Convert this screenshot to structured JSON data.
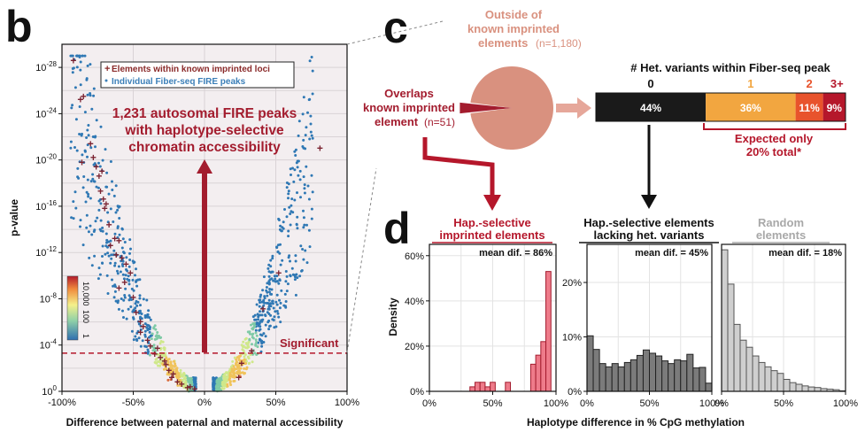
{
  "panel_letters": {
    "b": "b",
    "c": "c",
    "d": "d"
  },
  "colors": {
    "dark_red": "#a31c2e",
    "salmon": "#d9917f",
    "black": "#1a1a1a",
    "orange": "#f2a640",
    "red_orange": "#e8532c",
    "crimson": "#b5172b",
    "pink": "#ee7b8a",
    "grey": "#7b7b7b",
    "light_grey": "#cfcfcf",
    "bg": "#f3eef0"
  },
  "volcano": {
    "legend": {
      "imprinted": "Elements within known imprinted loci",
      "fire": "Individual Fiber-seq FIRE peaks"
    },
    "annotation_lines": [
      "1,231 autosomal FIRE peaks",
      "with haplotype-selective",
      "chromatin accessibility"
    ],
    "significant_label": "Significant",
    "colorbar_labels": [
      "10,000",
      "100",
      "1"
    ],
    "y_base": "10",
    "y_exponents": [
      "0",
      "-4",
      "-8",
      "-12",
      "-16",
      "-20",
      "-24",
      "-28"
    ]
  },
  "pie_labels": {
    "outside": [
      "Outside of",
      "known imprinted"
    ],
    "outside_last": "elements",
    "outside_n": "(n=1,180)",
    "overlaps": [
      "Overlaps",
      "known imprinted"
    ],
    "overlaps_last": "element",
    "overlaps_n": "(n=51)"
  },
  "stacked_bar": {
    "title": "# Het. variants within Fiber-seq peak",
    "expected_lines": [
      "Expected only",
      "20% total*"
    ]
  },
  "hist_titles": {
    "imprinted": [
      "Hap.-selective",
      "imprinted elements"
    ],
    "lacking": [
      "Hap.-selective elements",
      "lacking het. variants"
    ],
    "random": [
      "Random",
      "elements"
    ]
  },
  "chart_data": [
    {
      "type": "scatter",
      "id": "volcano",
      "title": "",
      "xlabel": "Difference between paternal and maternal accessibility",
      "ylabel": "p-value",
      "xlim": [
        -100,
        100
      ],
      "ylim_log10_neg": [
        0,
        30
      ],
      "x_ticks": [
        "-100%",
        "-50%",
        "0%",
        "50%",
        "100%"
      ],
      "x_tick_values": [
        -100,
        -50,
        0,
        50,
        100
      ],
      "y_tick_exponents": [
        0,
        4,
        8,
        12,
        16,
        20,
        24,
        28
      ],
      "significance_threshold_neglog10": 3.3,
      "series": [
        {
          "name": "Elements within known imprinted loci",
          "marker": "+",
          "points": [
            [
              -92,
              28.6
            ],
            [
              -87,
              25.2
            ],
            [
              -85,
              25.5
            ],
            [
              -80,
              21.4
            ],
            [
              -78,
              20.2
            ],
            [
              -74,
              18.6
            ],
            [
              -72,
              19.0
            ],
            [
              -73,
              17.3
            ],
            [
              -70,
              15.8
            ],
            [
              -69,
              16.2
            ],
            [
              -67,
              14.4
            ],
            [
              -63,
              13.2
            ],
            [
              -60,
              13.0
            ],
            [
              -58,
              11.5
            ],
            [
              -55,
              11.0
            ],
            [
              -52,
              10.2
            ],
            [
              -60,
              8.9
            ],
            [
              -50,
              8.1
            ],
            [
              -45,
              6.0
            ],
            [
              -43,
              5.6
            ],
            [
              -38,
              3.9
            ],
            [
              -35,
              3.2
            ],
            [
              -33,
              3.7
            ],
            [
              -31,
              2.9
            ],
            [
              -27,
              2.3
            ],
            [
              -25,
              1.8
            ],
            [
              -23,
              1.2
            ],
            [
              -19,
              0.8
            ],
            [
              -16,
              0.6
            ],
            [
              -12,
              0.3
            ],
            [
              -7,
              0.2
            ],
            [
              -10,
              0.4
            ],
            [
              -22,
              1.5
            ],
            [
              -28,
              2.6
            ],
            [
              -40,
              4.4
            ],
            [
              -48,
              6.8
            ],
            [
              -56,
              9.4
            ],
            [
              -66,
              12.6
            ],
            [
              -71,
              16.6
            ],
            [
              -76,
              19.4
            ],
            [
              -86,
              19.8
            ],
            [
              -62,
              11.8
            ],
            [
              -45,
              5.1
            ],
            [
              81,
              21.0
            ],
            [
              26,
              2.4
            ],
            [
              33,
              3.5
            ],
            [
              24,
              1.2
            ],
            [
              41,
              7.1
            ],
            [
              52,
              10.2
            ]
          ]
        },
        {
          "name": "Individual Fiber-seq FIRE peaks",
          "marker": "dot",
          "generated_points": 1180,
          "distribution": "V-shaped around 0; density highest at |x| 15-40, low p-values"
        }
      ]
    },
    {
      "type": "pie",
      "id": "pie",
      "labels": [
        "Outside of known imprinted elements",
        "Overlaps known imprinted element"
      ],
      "values": [
        1180,
        51
      ]
    },
    {
      "type": "bar",
      "id": "stacked_bar",
      "title": "# Het. variants within Fiber-seq peak",
      "categories": [
        "0",
        "1",
        "2",
        "3+"
      ],
      "values": [
        44,
        36,
        11,
        9
      ],
      "value_labels": [
        "44%",
        "36%",
        "11%",
        "9%"
      ]
    },
    {
      "type": "bar",
      "id": "hist_imprinted",
      "title": "Hap.-selective imprinted elements",
      "annotation": "mean dif. = 86%",
      "xlabel": "Haplotype difference in % CpG methylation",
      "ylabel": "Density",
      "xlim": [
        0,
        100
      ],
      "ylim": [
        0,
        65
      ],
      "x_ticks": [
        "0%",
        "50%",
        "100%"
      ],
      "y_ticks": [
        "0%",
        "20%",
        "40%",
        "60%"
      ],
      "y_tick_values": [
        0,
        20,
        40,
        60
      ],
      "bin_width": 4,
      "bin_starts": [
        32,
        36,
        40,
        44,
        48,
        60,
        80,
        84,
        88,
        92
      ],
      "values": [
        2,
        4,
        4,
        2,
        4,
        4,
        12,
        16,
        22,
        53
      ]
    },
    {
      "type": "bar",
      "id": "hist_lacking",
      "title": "Hap.-selective elements lacking het. variants",
      "annotation": "mean dif. = 45%",
      "xlim": [
        0,
        100
      ],
      "ylim": [
        0,
        27
      ],
      "x_ticks": [
        "0%",
        "50%",
        "100%"
      ],
      "y_ticks": [
        "0%",
        "10%",
        "20%"
      ],
      "y_tick_values": [
        0,
        10,
        20
      ],
      "bin_width": 5,
      "bin_starts": [
        0,
        5,
        10,
        15,
        20,
        25,
        30,
        35,
        40,
        45,
        50,
        55,
        60,
        65,
        70,
        75,
        80,
        85,
        90,
        95
      ],
      "values": [
        10.2,
        7.7,
        5.1,
        4.5,
        5.1,
        4.5,
        5.3,
        5.8,
        6.6,
        7.6,
        7.0,
        6.5,
        5.6,
        5.1,
        5.8,
        5.6,
        6.8,
        4.3,
        4.4,
        1.5
      ]
    },
    {
      "type": "bar",
      "id": "hist_random",
      "title": "Random elements",
      "annotation": "mean dif. = 18%",
      "xlim": [
        0,
        100
      ],
      "ylim": [
        0,
        27
      ],
      "x_ticks": [
        "0%",
        "50%",
        "100%"
      ],
      "bin_width": 5,
      "bin_starts": [
        0,
        5,
        10,
        15,
        20,
        25,
        30,
        35,
        40,
        45,
        50,
        55,
        60,
        65,
        70,
        75,
        80,
        85,
        90,
        95
      ],
      "values": [
        26.0,
        19.7,
        12.3,
        9.4,
        8.1,
        6.5,
        5.3,
        4.5,
        3.8,
        3.3,
        2.2,
        1.6,
        1.3,
        1.0,
        0.8,
        0.7,
        0.5,
        0.4,
        0.3,
        0.1
      ]
    }
  ],
  "shared_xlabel": "Haplotype difference in % CpG methylation",
  "shared_ylabel": "Density"
}
